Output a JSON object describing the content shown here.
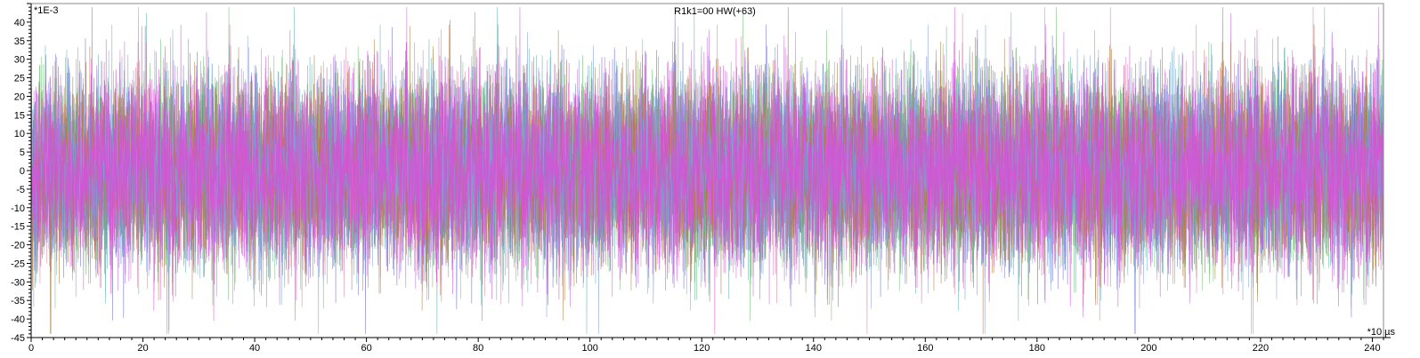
{
  "chart_data": {
    "type": "line",
    "title": "R1k1=00 HW(+63)",
    "y_unit_label": "*1E-3",
    "x_unit_label": "*10 µs",
    "xlim": [
      0,
      242
    ],
    "ylim": [
      -45,
      45
    ],
    "x_ticks": [
      0,
      20,
      40,
      60,
      80,
      100,
      120,
      140,
      160,
      180,
      200,
      220,
      240
    ],
    "x_tick_labels": [
      "0",
      "20",
      "40",
      "60",
      "80",
      "100",
      "120",
      "140",
      "160",
      "180",
      "200",
      "220",
      "240"
    ],
    "y_ticks": [
      40,
      35,
      30,
      25,
      20,
      15,
      10,
      5,
      0,
      -5,
      -10,
      -15,
      -20,
      -25,
      -30,
      -35,
      -40,
      -45
    ],
    "y_tick_labels": [
      "40",
      "35",
      "30",
      "25",
      "20",
      "15",
      "10",
      "5",
      "0",
      "-5",
      "-10",
      "-15",
      "-20",
      "-25",
      "-30",
      "-35",
      "-40",
      "-45"
    ],
    "grid": false,
    "legend": "none",
    "overlaid_trace_count": 8,
    "sample_rate_per_unit": 24,
    "noise_envelope_typical": [
      -25,
      25
    ],
    "noise_envelope_peak": [
      -44,
      44
    ],
    "series_colors": [
      "#6b6bd6",
      "#5fb0b0",
      "#c06ad8",
      "#6fc06f",
      "#d67fa0",
      "#b07a3f",
      "#7f9fe0",
      "#d84fd8"
    ],
    "axis_color": "#000000",
    "background_color": "#ffffff"
  }
}
